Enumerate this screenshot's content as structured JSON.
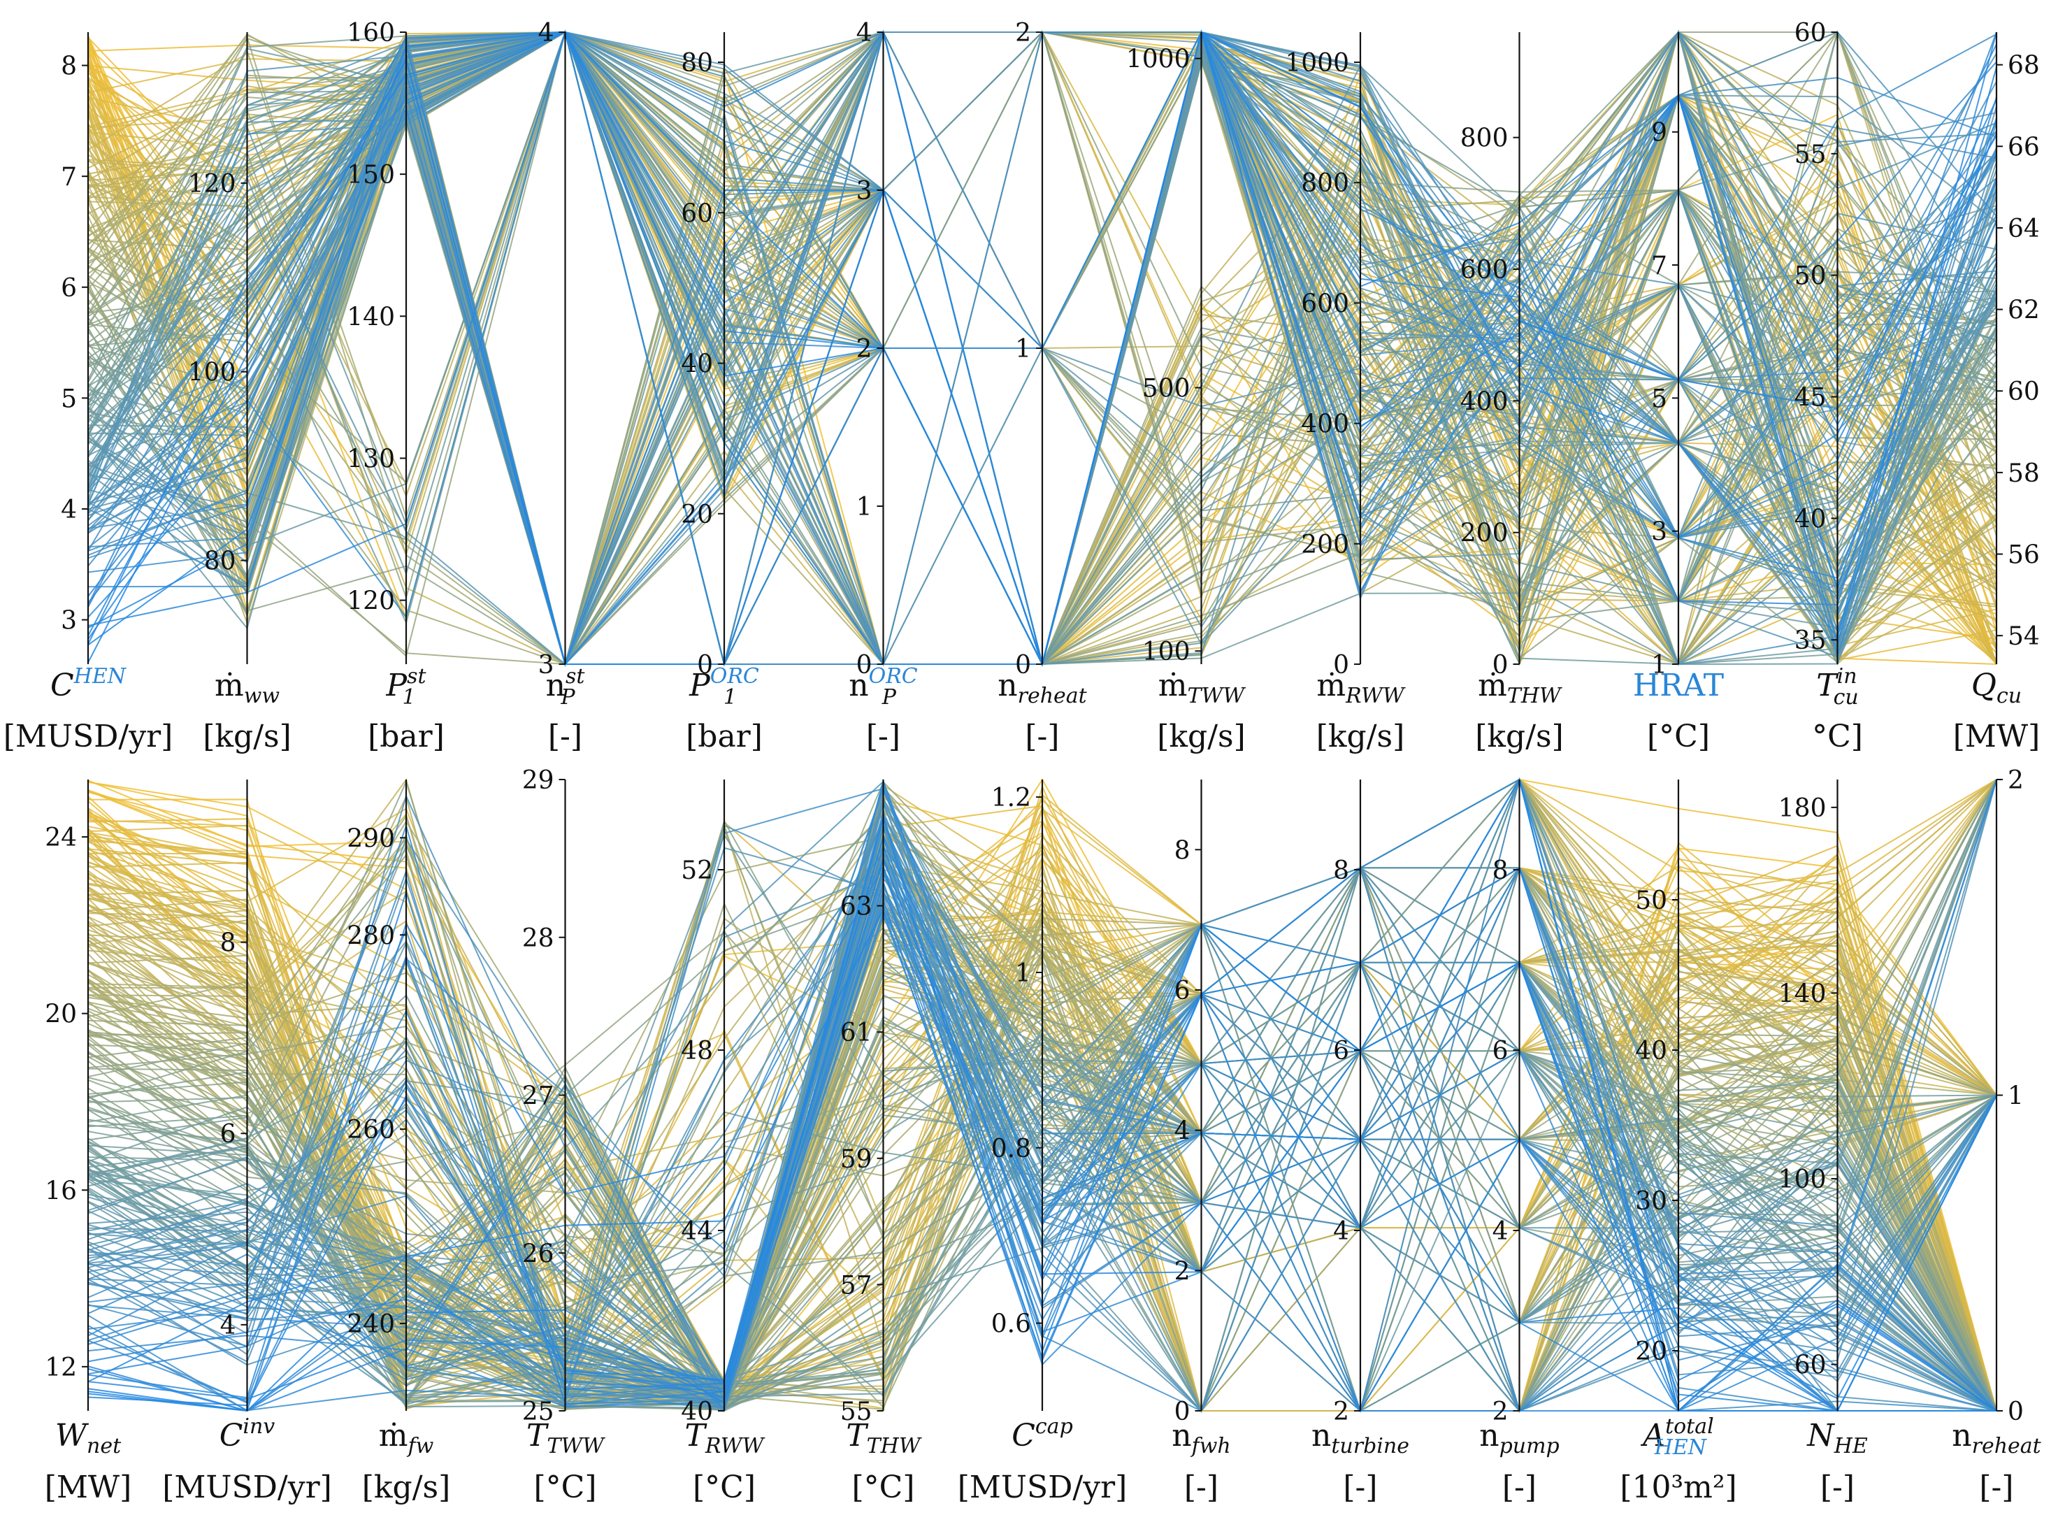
{
  "colors": {
    "high": "#f2bf33",
    "low": "#1f86e6",
    "axis": "#111111",
    "highlight": "#2a86d6"
  },
  "chart_data": [
    {
      "type": "parallel-coordinates",
      "name": "panel-top",
      "color_by_axis": 0,
      "axes": [
        {
          "id": "c_hen",
          "base": "C",
          "sup": "HEN",
          "sup_hl": true,
          "sub": "",
          "unit": "[MUSD/yr]",
          "min": 2.6,
          "max": 8.3,
          "ticks": [
            3,
            4,
            5,
            6,
            7,
            8
          ],
          "tick_side": "left"
        },
        {
          "id": "m_ww",
          "base": "ṁ",
          "sup": "",
          "sub": "ww",
          "unit": "[kg/s]",
          "min": 69,
          "max": 136,
          "ticks": [
            80,
            100,
            120
          ],
          "tick_side": "left"
        },
        {
          "id": "p1_st",
          "base": "P",
          "sup": "st",
          "sub": "1",
          "unit": "[bar]",
          "min": 115.5,
          "max": 160,
          "ticks": [
            120,
            130,
            140,
            150,
            160
          ],
          "tick_side": "left"
        },
        {
          "id": "np_st",
          "base": "n",
          "sup": "st",
          "sub": "P",
          "unit": "[-]",
          "min": 3,
          "max": 4,
          "ticks": [
            3,
            4
          ],
          "tick_side": "left"
        },
        {
          "id": "p1_orc",
          "base": "P",
          "sup": "ORC",
          "sup_hl": true,
          "sub": "1",
          "unit": "[bar]",
          "min": 0,
          "max": 84,
          "ticks": [
            0,
            20,
            40,
            60,
            80
          ],
          "tick_side": "left"
        },
        {
          "id": "np_orc",
          "base": "n",
          "sup": "ORC",
          "sup_hl": true,
          "sub": "P",
          "unit": "[-]",
          "min": 0,
          "max": 4,
          "ticks": [
            0,
            1,
            2,
            3,
            4
          ],
          "tick_side": "left"
        },
        {
          "id": "n_reheat_a",
          "base": "n",
          "sup": "",
          "sub": "reheat",
          "unit": "[-]",
          "min": 0,
          "max": 2,
          "ticks": [
            0,
            1,
            2
          ],
          "tick_side": "left"
        },
        {
          "id": "m_tww",
          "base": "ṁ",
          "sup": "",
          "sub": "TWW",
          "unit": "[kg/s]",
          "min": 80,
          "max": 1040,
          "ticks": [
            100,
            500,
            1000
          ],
          "tick_side": "left"
        },
        {
          "id": "m_rww",
          "base": "ṁ",
          "sup": "",
          "sub": "RWW",
          "unit": "[kg/s]",
          "min": 0,
          "max": 1050,
          "ticks": [
            0,
            200,
            400,
            600,
            800,
            1000
          ],
          "tick_side": "left"
        },
        {
          "id": "m_thw",
          "base": "ṁ",
          "sup": "",
          "sub": "THW",
          "unit": "[kg/s]",
          "min": 0,
          "max": 960,
          "ticks": [
            0,
            200,
            400,
            600,
            800
          ],
          "tick_side": "left"
        },
        {
          "id": "hrat",
          "base": "HRAT",
          "hl": true,
          "sup": "",
          "sub": "",
          "unit": "[°C]",
          "min": 1,
          "max": 10.5,
          "ticks": [
            1,
            3,
            5,
            7,
            9
          ],
          "tick_side": "left"
        },
        {
          "id": "t_cu_in",
          "base": "T",
          "sup": "in",
          "sub": "cu",
          "unit": "°C]",
          "min": 34,
          "max": 60,
          "ticks": [
            35,
            40,
            45,
            50,
            55,
            60
          ],
          "tick_side": "left"
        },
        {
          "id": "q_cu",
          "base": "Q",
          "sup": "",
          "sub": "cu",
          "unit": "[MW]",
          "min": 53.3,
          "max": 68.8,
          "ticks": [
            54,
            56,
            58,
            60,
            62,
            64,
            66,
            68
          ],
          "tick_side": "right"
        }
      ]
    },
    {
      "type": "parallel-coordinates",
      "name": "panel-bottom",
      "color_by_axis": 0,
      "axes": [
        {
          "id": "w_net",
          "base": "W",
          "sup": "",
          "sub": "net",
          "unit": "[MW]",
          "min": 11,
          "max": 25.3,
          "ticks": [
            12,
            16,
            20,
            24
          ],
          "tick_side": "left"
        },
        {
          "id": "c_inv",
          "base": "C",
          "sup": "inv",
          "sub": "",
          "unit": "[MUSD/yr]",
          "min": 3.1,
          "max": 9.7,
          "ticks": [
            4,
            6,
            8
          ],
          "tick_side": "left"
        },
        {
          "id": "m_fw",
          "base": "ṁ",
          "sup": "",
          "sub": "fw",
          "unit": "[kg/s]",
          "min": 231,
          "max": 296,
          "ticks": [
            240,
            260,
            280,
            290
          ],
          "tick_side": "left"
        },
        {
          "id": "t_tww",
          "base": "T",
          "sup": "",
          "sub": "TWW",
          "unit": "[°C]",
          "min": 25,
          "max": 29,
          "ticks": [
            25,
            26,
            27,
            28,
            29
          ],
          "tick_side": "left"
        },
        {
          "id": "t_rww",
          "base": "T",
          "sup": "",
          "sub": "RWW",
          "unit": "[°C]",
          "min": 40,
          "max": 54,
          "ticks": [
            40,
            44,
            48,
            52
          ],
          "tick_side": "left"
        },
        {
          "id": "t_thw",
          "base": "T",
          "sup": "",
          "sub": "THW",
          "unit": "[°C]",
          "min": 55,
          "max": 65,
          "ticks": [
            55,
            57,
            59,
            61,
            63
          ],
          "tick_side": "left"
        },
        {
          "id": "c_cap",
          "base": "C",
          "sup": "cap",
          "sub": "",
          "unit": "[MUSD/yr]",
          "min": 0.5,
          "max": 1.22,
          "ticks": [
            0.6,
            0.8,
            1,
            1.2
          ],
          "tick_side": "left"
        },
        {
          "id": "n_fwh",
          "base": "n",
          "sup": "",
          "sub": "fwh",
          "unit": "[-]",
          "min": 0,
          "max": 9,
          "ticks": [
            0,
            2,
            4,
            6,
            8
          ],
          "tick_side": "left"
        },
        {
          "id": "n_turbine",
          "base": "n",
          "sup": "",
          "sub": "turbine",
          "unit": "[-]",
          "min": 2,
          "max": 9,
          "ticks": [
            2,
            4,
            6,
            8
          ],
          "tick_side": "left"
        },
        {
          "id": "n_pump",
          "base": "n",
          "sup": "",
          "sub": "pump",
          "unit": "[-]",
          "min": 2,
          "max": 9,
          "ticks": [
            2,
            4,
            6,
            8
          ],
          "tick_side": "left"
        },
        {
          "id": "a_total",
          "base": "A",
          "sup": "total",
          "sub": "HEN",
          "sub_hl": true,
          "unit": "[10³m²]",
          "min": 16,
          "max": 58,
          "ticks": [
            20,
            30,
            40,
            50
          ],
          "tick_side": "left"
        },
        {
          "id": "n_he",
          "base": "N",
          "sup": "",
          "sub": "HE",
          "unit": "[-]",
          "min": 50,
          "max": 186,
          "ticks": [
            60,
            100,
            140,
            180
          ],
          "tick_side": "left"
        },
        {
          "id": "n_reheat_b",
          "base": "n",
          "sup": "",
          "sub": "reheat",
          "unit": "[-]",
          "min": 0,
          "max": 2,
          "ticks": [
            0,
            1,
            2
          ],
          "tick_side": "right"
        }
      ]
    }
  ],
  "generator": {
    "seed": 20240501,
    "lines_per_panel": 260
  }
}
